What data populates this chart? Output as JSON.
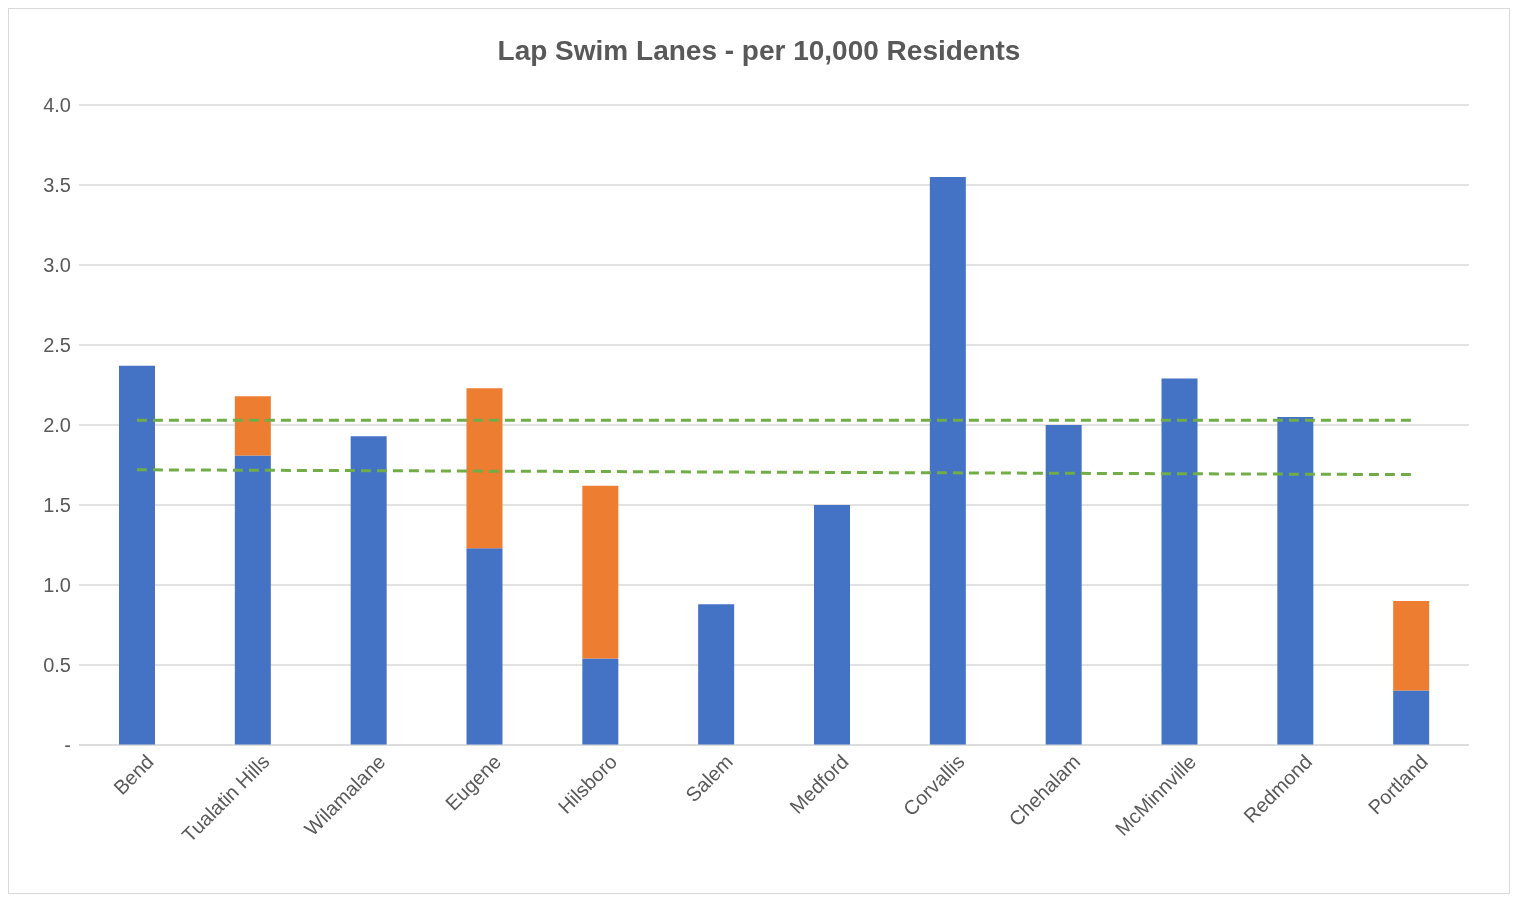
{
  "chart_data": {
    "type": "bar",
    "title": "Lap Swim Lanes - per 10,000 Residents",
    "stacked": true,
    "grid": "y",
    "legend": false,
    "categories": [
      "Bend",
      "Tualatin Hills",
      "Wilamalane",
      "Eugene",
      "Hilsboro",
      "Salem",
      "Medford",
      "Corvallis",
      "Chehalam",
      "McMinnville",
      "Redmond",
      "Portland"
    ],
    "series": [
      {
        "color": "#4472c4",
        "values": [
          2.37,
          1.81,
          1.93,
          1.23,
          0.54,
          0.88,
          1.5,
          3.55,
          2.0,
          2.29,
          2.05,
          0.34
        ]
      },
      {
        "color": "#ed7d31",
        "values": [
          null,
          0.37,
          null,
          1.0,
          1.08,
          null,
          null,
          null,
          null,
          null,
          null,
          0.56
        ]
      },
      {
        "type": "line",
        "color": "#70ad47",
        "line_style": "dashed",
        "values": [
          2.03,
          null,
          null,
          null,
          null,
          null,
          null,
          null,
          null,
          null,
          null,
          2.03
        ]
      },
      {
        "type": "line",
        "color": "#70ad47",
        "line_style": "dashed",
        "values": [
          1.72,
          null,
          null,
          null,
          null,
          null,
          null,
          null,
          null,
          null,
          null,
          1.69
        ]
      }
    ],
    "ylim": [
      0,
      4
    ],
    "yticks": [
      {
        "value": 0,
        "label": "-"
      },
      {
        "value": 0.5,
        "label": "0.5"
      },
      {
        "value": 1,
        "label": "1.0"
      },
      {
        "value": 1.5,
        "label": "1.5"
      },
      {
        "value": 2,
        "label": "2.0"
      },
      {
        "value": 2.5,
        "label": "2.5"
      },
      {
        "value": 3,
        "label": "3.0"
      },
      {
        "value": 3.5,
        "label": "3.5"
      },
      {
        "value": 4,
        "label": "4.0"
      }
    ]
  }
}
